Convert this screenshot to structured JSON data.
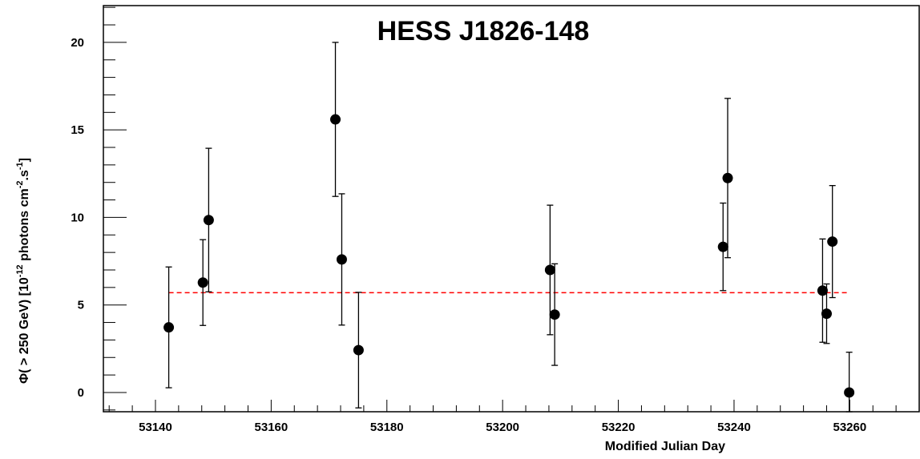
{
  "chart_data": {
    "type": "scatter",
    "title": "HESS J1826-148",
    "xlabel": "Modified Julian Day",
    "ylabel": {
      "prefix": "Φ( > 250 GeV) [10",
      "exp1": "-12",
      "mid": " photons cm",
      "exp2": "-2",
      "mid2": ".s",
      "exp3": "-1",
      "suffix": "]"
    },
    "xlim": [
      53131,
      53272
    ],
    "ylim": [
      -1.1,
      22.1
    ],
    "xticks": [
      53140,
      53160,
      53180,
      53200,
      53220,
      53240,
      53260
    ],
    "yticks": [
      0,
      5,
      10,
      15,
      20
    ],
    "grid": false,
    "series": [
      {
        "points": [
          {
            "x": 53142.3,
            "y": 3.72,
            "err": 3.45
          },
          {
            "x": 53148.2,
            "y": 6.28,
            "err": 2.45
          },
          {
            "x": 53149.2,
            "y": 9.85,
            "err": 4.1
          },
          {
            "x": 53171.1,
            "y": 15.6,
            "err": 4.4
          },
          {
            "x": 53172.2,
            "y": 7.6,
            "err": 3.75
          },
          {
            "x": 53175.1,
            "y": 2.42,
            "err": 3.3
          },
          {
            "x": 53208.2,
            "y": 7.0,
            "err": 3.7
          },
          {
            "x": 53209.0,
            "y": 4.45,
            "err": 2.9
          },
          {
            "x": 53238.1,
            "y": 8.32,
            "err": 2.5
          },
          {
            "x": 53238.9,
            "y": 12.25,
            "err": 4.55
          },
          {
            "x": 53255.3,
            "y": 5.82,
            "err": 2.95
          },
          {
            "x": 53256.0,
            "y": 4.5,
            "err": 1.7
          },
          {
            "x": 53257.0,
            "y": 8.62,
            "err": 3.2
          },
          {
            "x": 53259.9,
            "y": 0.0,
            "err": 2.3
          }
        ]
      }
    ],
    "fit": {
      "y": 5.7,
      "x_from": 53142.3,
      "x_to": 53259.9,
      "color": "#ff0000",
      "style": "dashed"
    },
    "colors": {
      "marker": "#000000",
      "frame": "#000000"
    }
  }
}
